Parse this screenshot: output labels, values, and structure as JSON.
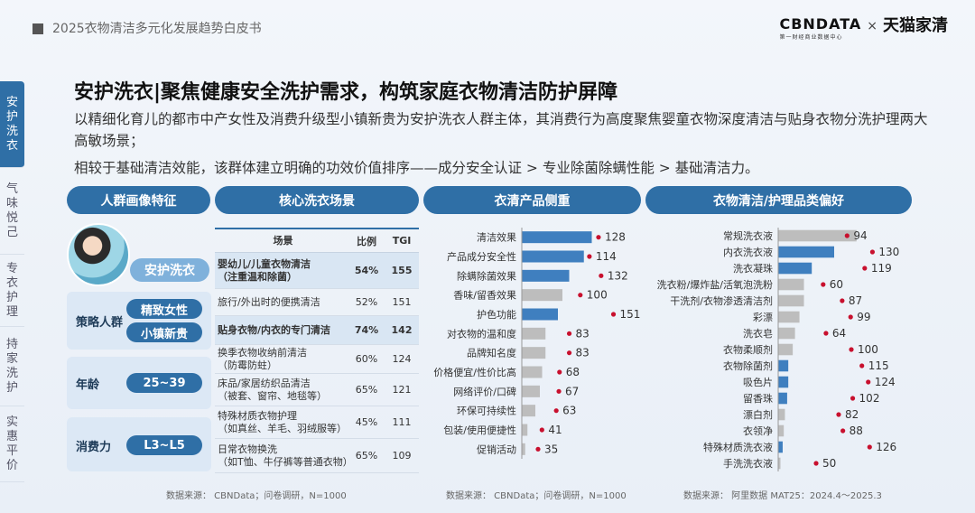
{
  "header": {
    "report_title": "2025衣物清洁多元化发展趋势白皮书",
    "logo_left": "CBNDATA",
    "logo_left_sub": "第一财经商业数据中心",
    "logo_sep": "×",
    "logo_right": "天猫家清"
  },
  "nav": {
    "items": [
      {
        "label": "安护洗衣",
        "active": true
      },
      {
        "label": "气味悦己",
        "active": false
      },
      {
        "label": "专衣护理",
        "active": false
      },
      {
        "label": "持家洗护",
        "active": false
      },
      {
        "label": "实惠平价",
        "active": false
      }
    ]
  },
  "main": {
    "title": "安护洗衣|聚焦健康安全洗护需求，构筑家庭衣物清洁防护屏障",
    "intro1": "以精细化育儿的都市中产女性及消费升级型小镇新贵为安护洗衣人群主体，其消费行为高度聚焦婴童衣物深度清洁与贴身衣物分洗护理两大高敏场景；",
    "intro2": "相较于基础清洁效能，该群体建立明确的功效价值排序——成分安全认证 > 专业除菌除螨性能 > 基础清洁力。"
  },
  "sections": {
    "persona": "人群画像特征",
    "scenes": "核心洗衣场景",
    "product": "衣清产品侧重",
    "category": "衣物清洁/护理品类偏好"
  },
  "persona": {
    "badge": "安护洗衣",
    "strategy_label": "策略人群",
    "strategy_tags": [
      "精致女性",
      "小镇新贵"
    ],
    "age_label": "年龄",
    "age_value": "25~39",
    "power_label": "消费力",
    "power_value": "L3~L5"
  },
  "scene_table": {
    "headers": [
      "场景",
      "比例",
      "TGI"
    ],
    "rows": [
      {
        "scene": "婴幼儿/儿童衣物清洁\n（注重温和除菌）",
        "ratio": "54%",
        "tgi": "155",
        "highlight": true
      },
      {
        "scene": "旅行/外出时的便携清洁",
        "ratio": "52%",
        "tgi": "151",
        "highlight": false
      },
      {
        "scene": "贴身衣物/内衣的专门清洁",
        "ratio": "74%",
        "tgi": "142",
        "highlight": true
      },
      {
        "scene": "换季衣物收纳前清洁\n（防霉防蛀）",
        "ratio": "60%",
        "tgi": "124",
        "highlight": false
      },
      {
        "scene": "床品/家居纺织品清洁\n（被套、窗帘、地毯等）",
        "ratio": "65%",
        "tgi": "121",
        "highlight": false
      },
      {
        "scene": "特殊材质衣物护理\n（如真丝、羊毛、羽绒服等）",
        "ratio": "45%",
        "tgi": "111",
        "highlight": false
      },
      {
        "scene": "日常衣物换洗\n（如T恤、牛仔裤等普通衣物）",
        "ratio": "65%",
        "tgi": "109",
        "highlight": false
      }
    ]
  },
  "chart_data": [
    {
      "type": "bar",
      "orientation": "horizontal",
      "title": "衣清产品侧重",
      "categories": [
        "清洁效果",
        "产品成分安全性",
        "除螨除菌效果",
        "香味/留香效果",
        "护色功能",
        "对衣物的温和度",
        "品牌知名度",
        "价格便宜/性价比高",
        "网络评价/口碑",
        "环保可持续性",
        "包装/使用便捷性",
        "促销活动"
      ],
      "values": [
        128,
        114,
        132,
        100,
        151,
        83,
        83,
        68,
        67,
        63,
        41,
        35
      ],
      "bar_share": [
        0.62,
        0.55,
        0.42,
        0.36,
        0.32,
        0.21,
        0.21,
        0.18,
        0.16,
        0.12,
        0.05,
        0.03
      ],
      "highlighted": [
        true,
        true,
        true,
        false,
        true,
        false,
        false,
        false,
        false,
        false,
        false,
        false
      ],
      "colors": {
        "highlight": "#3f7fbf",
        "normal": "#bdbdbd",
        "dot": "#c8102e"
      }
    },
    {
      "type": "bar",
      "orientation": "horizontal",
      "title": "衣物清洁/护理品类偏好",
      "categories": [
        "常规洗衣液",
        "内衣洗衣液",
        "洗衣凝珠",
        "洗衣粉/爆炸盐/活氧泡洗粉",
        "干洗剂/衣物渗透清洁剂",
        "彩漂",
        "洗衣皂",
        "衣物柔顺剂",
        "衣物除菌剂",
        "吸色片",
        "留香珠",
        "漂白剂",
        "衣领净",
        "特殊材质洗衣液",
        "手洗洗衣液"
      ],
      "values": [
        94,
        130,
        119,
        60,
        87,
        99,
        64,
        100,
        115,
        124,
        102,
        82,
        88,
        126,
        50
      ],
      "bar_share": [
        0.7,
        0.5,
        0.3,
        0.23,
        0.23,
        0.19,
        0.15,
        0.13,
        0.09,
        0.09,
        0.08,
        0.06,
        0.05,
        0.04,
        0.02
      ],
      "highlighted": [
        false,
        true,
        true,
        false,
        false,
        false,
        false,
        false,
        true,
        true,
        true,
        false,
        false,
        true,
        false
      ],
      "colors": {
        "highlight": "#3f7fbf",
        "normal": "#bdbdbd",
        "dot": "#c8102e"
      }
    }
  ],
  "sources": {
    "left": "数据来源：  CBNData；问卷调研，N=1000",
    "mid": "数据来源：  CBNData；问卷调研，N=1000",
    "right": "数据来源：  阿里数据 MAT25：2024.4～2025.3"
  }
}
